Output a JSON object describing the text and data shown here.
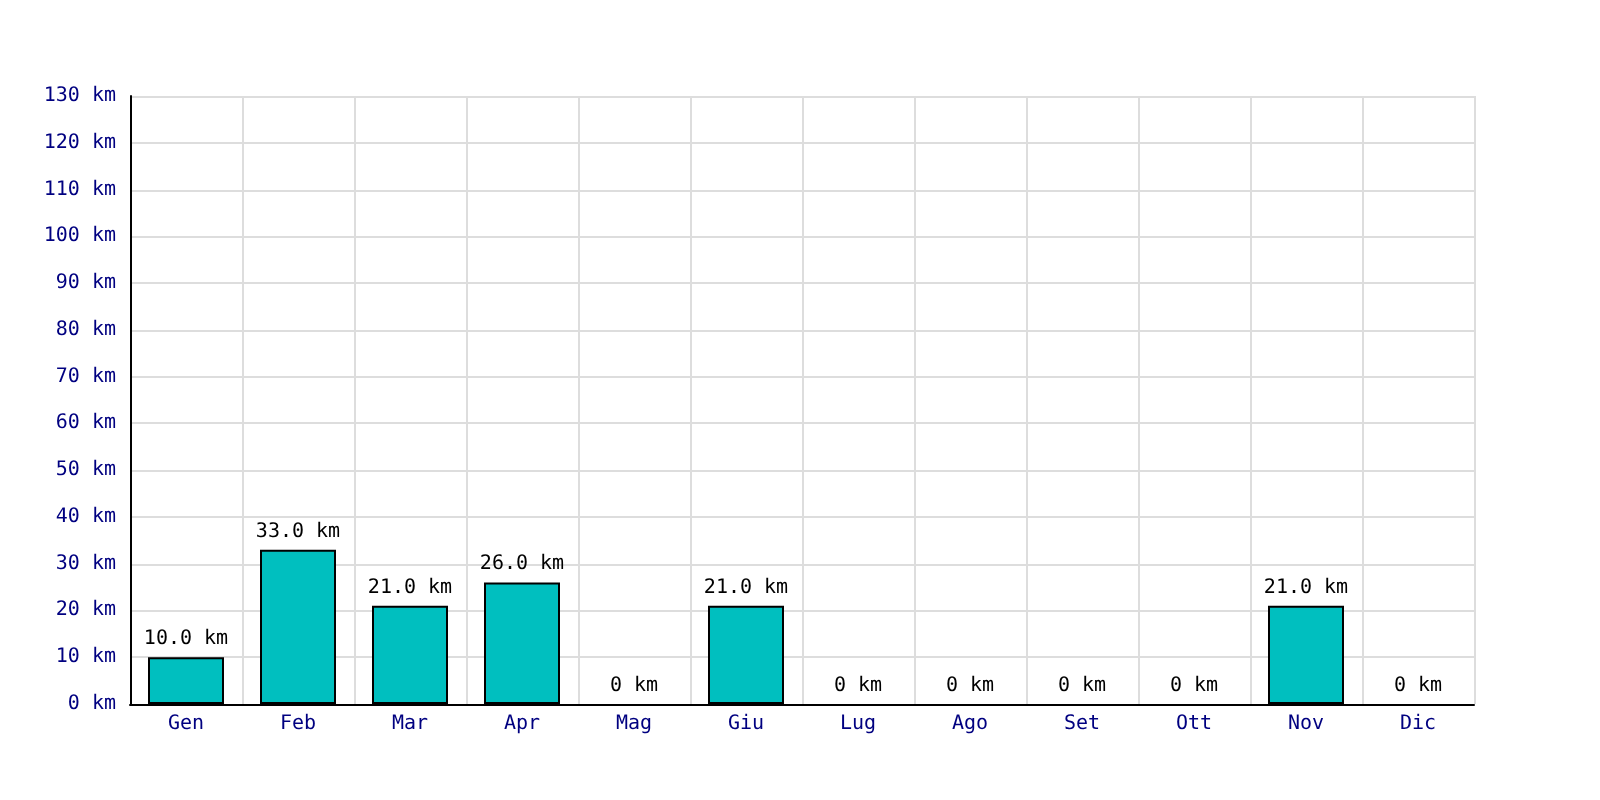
{
  "chart_data": {
    "type": "bar",
    "categories": [
      "Gen",
      "Feb",
      "Mar",
      "Apr",
      "Mag",
      "Giu",
      "Lug",
      "Ago",
      "Set",
      "Ott",
      "Nov",
      "Dic"
    ],
    "values": [
      10,
      33,
      21,
      26,
      0,
      21,
      0,
      0,
      0,
      0,
      21,
      0
    ],
    "value_labels": [
      "10.0 km",
      "33.0 km",
      "21.0 km",
      "26.0 km",
      "0 km",
      "21.0 km",
      "0 km",
      "0 km",
      "0 km",
      "0 km",
      "21.0 km",
      "0 km"
    ],
    "color": "#00bfbf",
    "ylim": [
      0,
      130
    ],
    "yticks": [
      {
        "value": 0,
        "label": "0 km"
      },
      {
        "value": 10,
        "label": "10 km"
      },
      {
        "value": 20,
        "label": "20 km"
      },
      {
        "value": 30,
        "label": "30 km"
      },
      {
        "value": 40,
        "label": "40 km"
      },
      {
        "value": 50,
        "label": "50 km"
      },
      {
        "value": 60,
        "label": "60 km"
      },
      {
        "value": 70,
        "label": "70 km"
      },
      {
        "value": 80,
        "label": "80 km"
      },
      {
        "value": 90,
        "label": "90 km"
      },
      {
        "value": 100,
        "label": "100 km"
      },
      {
        "value": 110,
        "label": "110 km"
      },
      {
        "value": 120,
        "label": "120 km"
      },
      {
        "value": 130,
        "label": "130 km"
      }
    ],
    "grid": true
  }
}
